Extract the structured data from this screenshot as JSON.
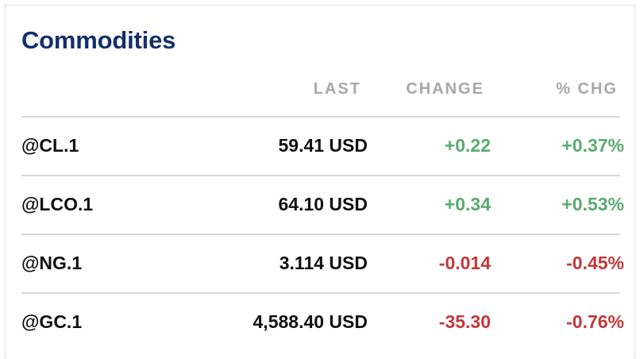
{
  "widget": {
    "title": "Commodities",
    "columns": {
      "last": "LAST",
      "change": "CHANGE",
      "pct_change": "% CHG"
    },
    "rows": [
      {
        "symbol": "@CL.1",
        "last": "59.41 USD",
        "change": "+0.22",
        "pct_change": "+0.37%",
        "direction": "up"
      },
      {
        "symbol": "@LCO.1",
        "last": "64.10 USD",
        "change": "+0.34",
        "pct_change": "+0.53%",
        "direction": "up"
      },
      {
        "symbol": "@NG.1",
        "last": "3.114 USD",
        "change": "-0.014",
        "pct_change": "-0.45%",
        "direction": "down"
      },
      {
        "symbol": "@GC.1",
        "last": "4,588.40 USD",
        "change": "-35.30",
        "pct_change": "-0.76%",
        "direction": "down"
      }
    ]
  },
  "colors": {
    "title": "#12306a",
    "header": "#a8a8a8",
    "positive": "#5aab6e",
    "negative": "#c0393b",
    "divider": "#d8d8d8"
  }
}
